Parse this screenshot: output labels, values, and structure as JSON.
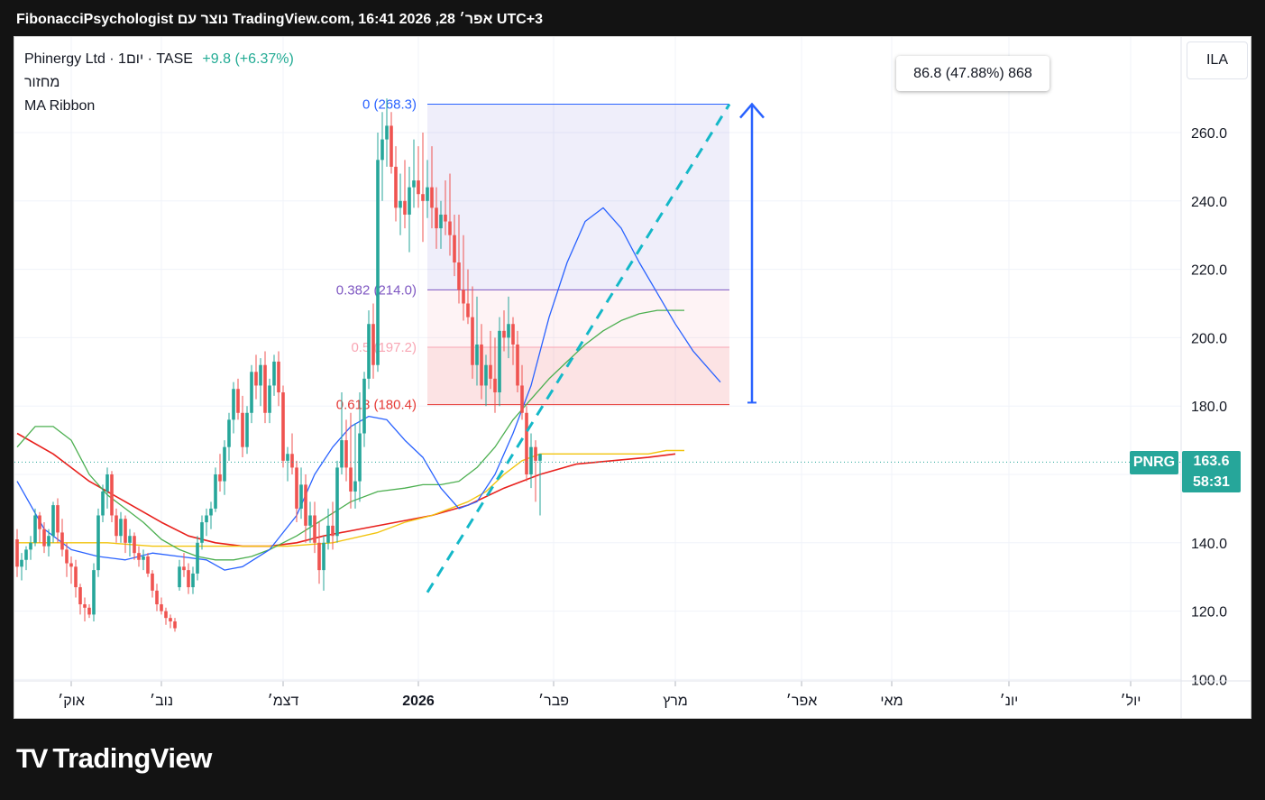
{
  "header": {
    "watermark_line": "FibonacciPsychologist נוצר עם TradingView.com, 16:41 2026 ,28 אפר׳ UTC+3"
  },
  "legend": {
    "symbol_line": "Phinergy Ltd · 1יום · TASE",
    "change": "+9.8 (+6.37%)",
    "volume_label": "מחזור",
    "indicator": "MA Ribbon"
  },
  "currency_button": "ILA",
  "measure_label": "86.8 (47.88%) 868",
  "price_badge": {
    "ticker": "PNRG",
    "price": "163.6",
    "countdown": "58:31"
  },
  "logo_text": "TradingView",
  "colors": {
    "up": "#26a69a",
    "down": "#ef5350",
    "ma_blue": "#2962ff",
    "ma_green": "#4caf50",
    "ma_yellow": "#f2c40f",
    "ma_red": "#e8201c",
    "trend": "#14b8c8",
    "fib_zero": "#2962ff",
    "fib_382": "#7e57c2",
    "fib_05": "#f8a6b4",
    "fib_618": "#e53935"
  },
  "chart_data": {
    "type": "candlestick",
    "ylim": [
      100,
      272
    ],
    "yticks": [
      "260.0",
      "240.0",
      "220.0",
      "200.0",
      "180.0",
      "160.0",
      "140.0",
      "120.0",
      "100.0"
    ],
    "xticks": [
      {
        "t": 12,
        "label": "אוק׳"
      },
      {
        "t": 32,
        "label": "נוב׳"
      },
      {
        "t": 59,
        "label": "דצמ׳"
      },
      {
        "t": 89,
        "label": "2026"
      },
      {
        "t": 119,
        "label": "פבר׳"
      },
      {
        "t": 146,
        "label": "מרץ"
      },
      {
        "t": 174,
        "label": "אפר׳"
      },
      {
        "t": 194,
        "label": "מאי"
      },
      {
        "t": 220,
        "label": "יונ׳"
      },
      {
        "t": 247,
        "label": "יול׳"
      }
    ],
    "candles": [
      [
        141,
        144,
        130,
        133
      ],
      [
        133,
        137,
        129,
        135
      ],
      [
        135,
        139,
        132,
        138
      ],
      [
        138,
        142,
        135,
        140
      ],
      [
        140,
        150,
        139,
        148
      ],
      [
        148,
        149,
        140,
        144
      ],
      [
        144,
        146,
        137,
        139
      ],
      [
        139,
        144,
        136,
        142
      ],
      [
        142,
        152,
        140,
        151
      ],
      [
        151,
        153,
        140,
        143
      ],
      [
        143,
        147,
        136,
        138
      ],
      [
        138,
        140,
        130,
        134
      ],
      [
        134,
        136,
        128,
        133
      ],
      [
        133,
        135,
        124,
        127
      ],
      [
        127,
        128,
        119,
        122
      ],
      [
        122,
        124,
        117,
        121
      ],
      [
        121,
        122,
        118,
        119
      ],
      [
        119,
        134,
        117,
        132
      ],
      [
        132,
        150,
        130,
        148
      ],
      [
        148,
        157,
        146,
        155
      ],
      [
        155,
        162,
        150,
        160
      ],
      [
        160,
        161,
        146,
        148
      ],
      [
        148,
        150,
        140,
        142
      ],
      [
        142,
        149,
        140,
        147
      ],
      [
        147,
        148,
        137,
        140
      ],
      [
        140,
        144,
        136,
        142
      ],
      [
        142,
        143,
        135,
        137
      ],
      [
        137,
        139,
        133,
        135
      ],
      [
        135,
        138,
        132,
        136
      ],
      [
        136,
        137,
        130,
        131
      ],
      [
        131,
        132,
        124,
        126
      ],
      [
        126,
        128,
        120,
        122
      ],
      [
        122,
        124,
        119,
        120
      ],
      [
        120,
        121,
        116,
        118
      ],
      [
        118,
        119,
        115,
        117
      ],
      [
        117,
        118,
        114,
        115
      ],
      [
        127,
        135,
        126,
        133
      ],
      [
        133,
        137,
        130,
        132
      ],
      [
        132,
        134,
        125,
        127
      ],
      [
        127,
        133,
        125,
        131
      ],
      [
        131,
        142,
        129,
        140
      ],
      [
        140,
        148,
        138,
        146
      ],
      [
        146,
        150,
        142,
        148
      ],
      [
        148,
        152,
        144,
        150
      ],
      [
        150,
        162,
        149,
        160
      ],
      [
        160,
        166,
        155,
        158
      ],
      [
        158,
        170,
        154,
        168
      ],
      [
        168,
        178,
        164,
        176
      ],
      [
        176,
        187,
        172,
        185
      ],
      [
        185,
        188,
        176,
        178
      ],
      [
        178,
        183,
        165,
        168
      ],
      [
        168,
        180,
        166,
        178
      ],
      [
        178,
        192,
        175,
        190
      ],
      [
        190,
        195,
        182,
        186
      ],
      [
        186,
        194,
        180,
        192
      ],
      [
        192,
        196,
        175,
        178
      ],
      [
        178,
        188,
        175,
        186
      ],
      [
        186,
        195,
        183,
        193
      ],
      [
        193,
        196,
        180,
        184
      ],
      [
        184,
        186,
        162,
        164
      ],
      [
        164,
        168,
        158,
        166
      ],
      [
        166,
        172,
        160,
        162
      ],
      [
        162,
        164,
        146,
        150
      ],
      [
        150,
        162,
        147,
        157
      ],
      [
        157,
        160,
        140,
        145
      ],
      [
        145,
        152,
        140,
        148
      ],
      [
        148,
        152,
        137,
        140
      ],
      [
        140,
        146,
        128,
        132
      ],
      [
        132,
        142,
        126,
        140
      ],
      [
        140,
        150,
        138,
        145
      ],
      [
        145,
        152,
        138,
        142
      ],
      [
        142,
        164,
        140,
        162
      ],
      [
        162,
        184,
        160,
        170
      ],
      [
        170,
        176,
        158,
        162
      ],
      [
        162,
        178,
        150,
        155
      ],
      [
        155,
        175,
        150,
        158
      ],
      [
        158,
        184,
        152,
        172
      ],
      [
        172,
        190,
        168,
        188
      ],
      [
        188,
        208,
        185,
        204
      ],
      [
        204,
        210,
        188,
        192
      ],
      [
        192,
        260,
        190,
        252
      ],
      [
        252,
        266,
        240,
        258
      ],
      [
        258,
        270,
        250,
        262
      ],
      [
        262,
        266,
        248,
        250
      ],
      [
        250,
        256,
        234,
        238
      ],
      [
        238,
        248,
        230,
        240
      ],
      [
        240,
        252,
        232,
        236
      ],
      [
        236,
        250,
        225,
        244
      ],
      [
        244,
        258,
        238,
        246
      ],
      [
        246,
        256,
        238,
        242
      ],
      [
        242,
        260,
        228,
        240
      ],
      [
        240,
        252,
        235,
        244
      ],
      [
        244,
        256,
        232,
        238
      ],
      [
        238,
        244,
        226,
        232
      ],
      [
        232,
        240,
        226,
        236
      ],
      [
        236,
        246,
        230,
        234
      ],
      [
        234,
        248,
        224,
        230
      ],
      [
        230,
        236,
        218,
        222
      ],
      [
        222,
        236,
        210,
        214
      ],
      [
        214,
        230,
        205,
        210
      ],
      [
        210,
        220,
        204,
        206
      ],
      [
        206,
        215,
        188,
        192
      ],
      [
        192,
        212,
        186,
        198
      ],
      [
        198,
        204,
        182,
        186
      ],
      [
        186,
        195,
        180,
        192
      ],
      [
        192,
        202,
        185,
        188
      ],
      [
        188,
        200,
        178,
        184
      ],
      [
        184,
        206,
        180,
        202
      ],
      [
        202,
        208,
        196,
        200
      ],
      [
        200,
        212,
        194,
        204
      ],
      [
        204,
        206,
        192,
        198
      ],
      [
        198,
        202,
        184,
        186
      ],
      [
        186,
        192,
        176,
        178
      ],
      [
        178,
        180,
        158,
        160
      ],
      [
        160,
        172,
        156,
        168
      ],
      [
        168,
        170,
        152,
        164
      ],
      [
        164,
        166,
        148,
        166
      ]
    ],
    "ma_blue": [
      [
        0,
        158
      ],
      [
        6,
        144
      ],
      [
        12,
        138
      ],
      [
        18,
        136
      ],
      [
        24,
        135
      ],
      [
        30,
        137
      ],
      [
        36,
        136
      ],
      [
        42,
        135
      ],
      [
        46,
        132
      ],
      [
        50,
        133
      ],
      [
        56,
        138
      ],
      [
        62,
        148
      ],
      [
        66,
        160
      ],
      [
        70,
        168
      ],
      [
        74,
        174
      ],
      [
        78,
        177
      ],
      [
        82,
        176
      ],
      [
        86,
        170
      ],
      [
        90,
        165
      ],
      [
        94,
        156
      ],
      [
        98,
        150
      ],
      [
        102,
        152
      ],
      [
        106,
        160
      ],
      [
        110,
        172
      ],
      [
        114,
        186
      ],
      [
        118,
        206
      ],
      [
        122,
        222
      ],
      [
        126,
        234
      ],
      [
        130,
        238
      ],
      [
        134,
        232
      ],
      [
        138,
        222
      ],
      [
        142,
        213
      ],
      [
        146,
        204
      ],
      [
        150,
        196
      ],
      [
        154,
        190
      ],
      [
        156,
        187
      ]
    ],
    "ma_green": [
      [
        0,
        168
      ],
      [
        4,
        174
      ],
      [
        8,
        174
      ],
      [
        12,
        170
      ],
      [
        16,
        160
      ],
      [
        20,
        154
      ],
      [
        24,
        150
      ],
      [
        28,
        146
      ],
      [
        32,
        141
      ],
      [
        36,
        138
      ],
      [
        40,
        136
      ],
      [
        44,
        135
      ],
      [
        48,
        135
      ],
      [
        52,
        136
      ],
      [
        56,
        138
      ],
      [
        62,
        142
      ],
      [
        68,
        147
      ],
      [
        74,
        152
      ],
      [
        80,
        155
      ],
      [
        86,
        156
      ],
      [
        90,
        157
      ],
      [
        94,
        157
      ],
      [
        98,
        158
      ],
      [
        102,
        162
      ],
      [
        106,
        168
      ],
      [
        110,
        176
      ],
      [
        114,
        182
      ],
      [
        118,
        188
      ],
      [
        122,
        193
      ],
      [
        126,
        198
      ],
      [
        130,
        202
      ],
      [
        134,
        205
      ],
      [
        138,
        207
      ],
      [
        142,
        208
      ],
      [
        146,
        208
      ],
      [
        148,
        208
      ]
    ],
    "ma_yellow": [
      [
        0,
        140
      ],
      [
        10,
        140
      ],
      [
        20,
        140
      ],
      [
        30,
        139
      ],
      [
        40,
        139
      ],
      [
        50,
        139
      ],
      [
        60,
        139
      ],
      [
        70,
        140
      ],
      [
        80,
        143
      ],
      [
        86,
        146
      ],
      [
        92,
        148
      ],
      [
        96,
        150
      ],
      [
        100,
        152
      ],
      [
        104,
        155
      ],
      [
        108,
        160
      ],
      [
        112,
        164
      ],
      [
        116,
        166
      ],
      [
        120,
        166
      ],
      [
        124,
        166
      ],
      [
        128,
        166
      ],
      [
        132,
        166
      ],
      [
        136,
        166
      ],
      [
        140,
        166
      ],
      [
        144,
        167
      ],
      [
        148,
        167
      ]
    ],
    "ma_red": [
      [
        0,
        172
      ],
      [
        8,
        166
      ],
      [
        16,
        158
      ],
      [
        24,
        152
      ],
      [
        32,
        146
      ],
      [
        38,
        142
      ],
      [
        44,
        140
      ],
      [
        50,
        139
      ],
      [
        56,
        139
      ],
      [
        62,
        140
      ],
      [
        68,
        142
      ],
      [
        76,
        144
      ],
      [
        84,
        146
      ],
      [
        92,
        148
      ],
      [
        100,
        151
      ],
      [
        108,
        156
      ],
      [
        116,
        160
      ],
      [
        124,
        163
      ],
      [
        132,
        164
      ],
      [
        140,
        165
      ],
      [
        146,
        166
      ]
    ],
    "fib": [
      {
        "level": "0",
        "price": 268.3,
        "label": "0 (268.3)"
      },
      {
        "level": "0.382",
        "price": 214.0,
        "label": "0.382 (214.0)"
      },
      {
        "level": "0.5",
        "price": 197.2,
        "label": "0.5 (197.2)"
      },
      {
        "level": "0.618",
        "price": 180.4,
        "label": "0.618 (180.4)"
      }
    ],
    "fib_x_range": [
      91,
      158
    ],
    "trendline": [
      [
        91,
        125.5
      ],
      [
        158,
        268.3
      ]
    ],
    "measure": {
      "t": 163,
      "from": 181,
      "to": 268.3
    },
    "last_price": 163.6
  }
}
